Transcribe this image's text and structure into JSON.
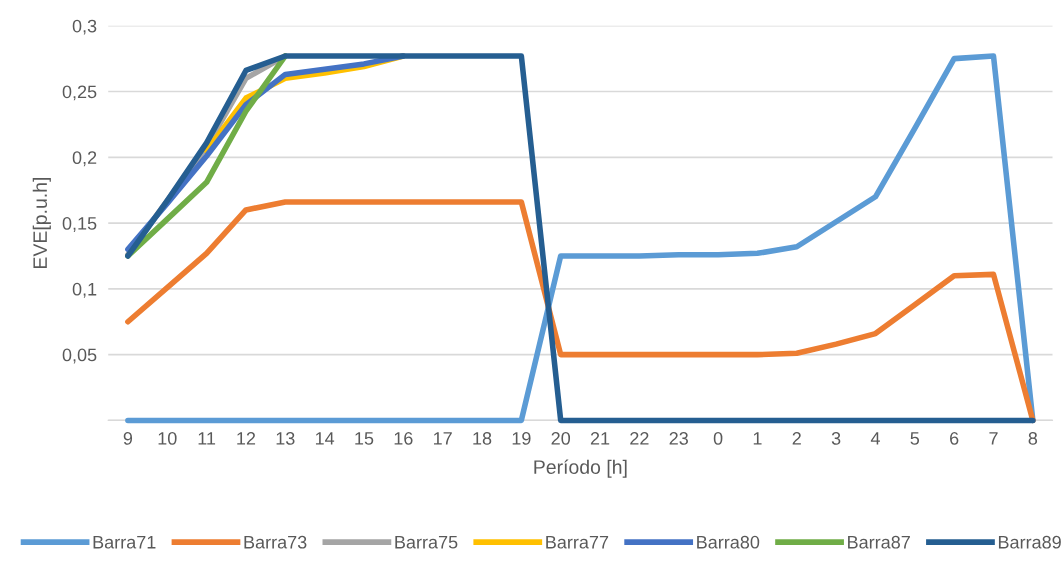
{
  "chart_data": {
    "type": "line",
    "xlabel": "Período [h]",
    "ylabel": "EVE[p.u.h]",
    "categories": [
      "9",
      "10",
      "11",
      "12",
      "13",
      "14",
      "15",
      "16",
      "17",
      "18",
      "19",
      "20",
      "21",
      "22",
      "23",
      "0",
      "1",
      "2",
      "3",
      "4",
      "5",
      "6",
      "7",
      "8"
    ],
    "series": [
      {
        "name": "Barra71",
        "color": "#5b9bd5",
        "values": [
          0,
          0,
          0,
          0,
          0,
          0,
          0,
          0,
          0,
          0,
          0,
          0.125,
          0.125,
          0.125,
          0.126,
          0.126,
          0.127,
          0.132,
          0.151,
          0.17,
          0.222,
          0.275,
          0.277,
          0
        ]
      },
      {
        "name": "Barra73",
        "color": "#ed7d31",
        "values": [
          0.075,
          0.101,
          0.127,
          0.16,
          0.166,
          0.166,
          0.166,
          0.166,
          0.166,
          0.166,
          0.166,
          0.05,
          0.05,
          0.05,
          0.05,
          0.05,
          0.05,
          0.051,
          0.058,
          0.066,
          0.088,
          0.11,
          0.111,
          0
        ]
      },
      {
        "name": "Barra75",
        "color": "#a5a5a5",
        "values": [
          0.126,
          0.167,
          0.208,
          0.26,
          0.277,
          null,
          null,
          null,
          null,
          null,
          null,
          null,
          null,
          null,
          null,
          null,
          null,
          null,
          null,
          null,
          null,
          null,
          null,
          null
        ]
      },
      {
        "name": "Barra77",
        "color": "#ffc000",
        "values": [
          null,
          null,
          0.205,
          0.245,
          0.26,
          0.264,
          0.269,
          0.277,
          null,
          null,
          null,
          null,
          null,
          null,
          null,
          null,
          null,
          null,
          null,
          null,
          null,
          null,
          null,
          null
        ]
      },
      {
        "name": "Barra80",
        "color": "#4472c4",
        "values": [
          0.13,
          0.165,
          0.201,
          0.24,
          0.263,
          0.267,
          0.271,
          0.277,
          null,
          null,
          null,
          null,
          null,
          null,
          null,
          null,
          null,
          null,
          null,
          null,
          null,
          null,
          null,
          null
        ]
      },
      {
        "name": "Barra87",
        "color": "#70ad47",
        "values": [
          0.125,
          0.153,
          0.181,
          0.235,
          0.277,
          null,
          null,
          null,
          null,
          null,
          null,
          null,
          null,
          null,
          null,
          null,
          null,
          null,
          null,
          null,
          null,
          null,
          null,
          null
        ]
      },
      {
        "name": "Barra89",
        "color": "#255e91",
        "values": [
          0.125,
          0.167,
          0.211,
          0.266,
          0.277,
          0.277,
          0.277,
          0.277,
          0.277,
          0.277,
          0.277,
          0,
          0,
          0,
          0,
          0,
          0,
          0,
          0,
          0,
          0,
          0,
          0,
          0
        ]
      }
    ],
    "ylim": [
      0,
      0.3
    ],
    "yticks": [
      {
        "value": 0,
        "label": null
      },
      {
        "value": 0.05,
        "label": "0,05"
      },
      {
        "value": 0.1,
        "label": "0,1"
      },
      {
        "value": 0.15,
        "label": "0,15"
      },
      {
        "value": 0.2,
        "label": "0,2"
      },
      {
        "value": 0.25,
        "label": "0,25"
      },
      {
        "value": 0.3,
        "label": "0,3"
      }
    ],
    "grid": "y",
    "legend": "bottom",
    "marker": "none",
    "line_style": "solid"
  }
}
